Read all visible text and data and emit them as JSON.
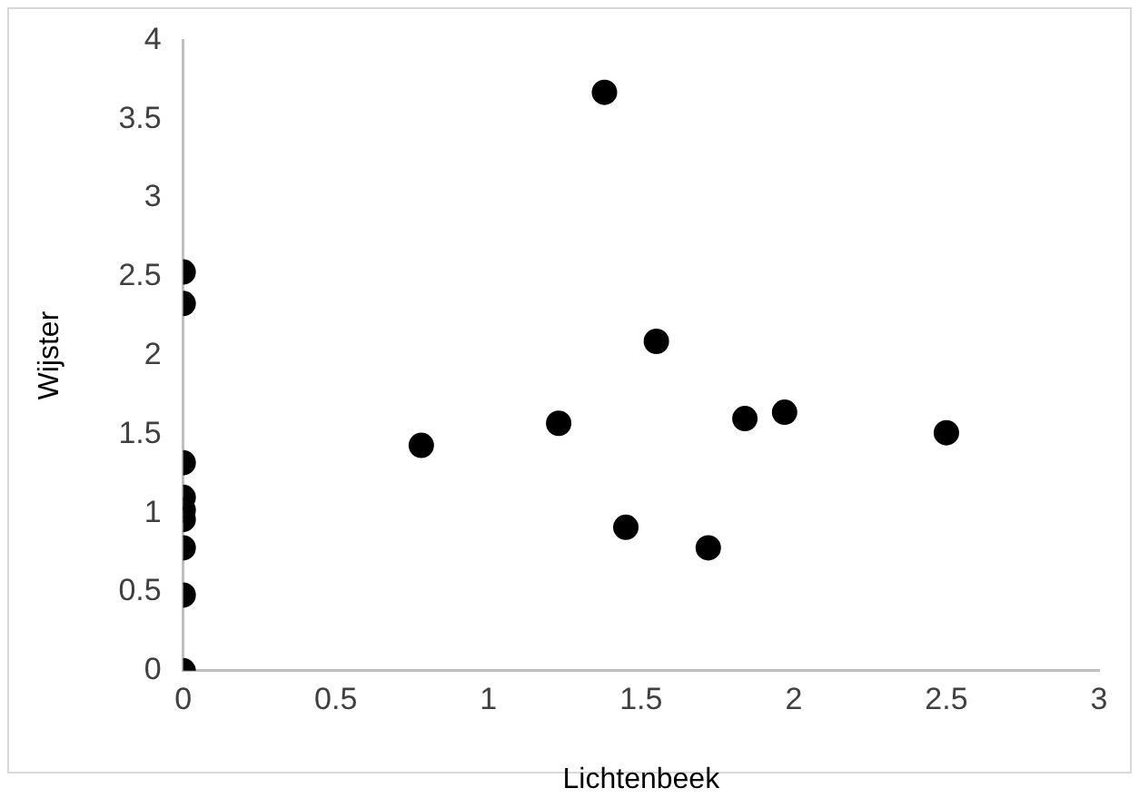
{
  "chart_data": {
    "type": "scatter",
    "xlabel": "Lichtenbeek",
    "ylabel": "Wijster",
    "x": [
      0,
      0,
      0,
      0,
      0,
      0,
      0,
      0,
      0,
      0.78,
      1.23,
      1.38,
      1.45,
      1.55,
      1.72,
      1.84,
      1.97,
      2.5
    ],
    "series": [
      {
        "color": "#000000",
        "values": [
          0,
          0.48,
          0.78,
          0.96,
          1.02,
          1.1,
          1.32,
          2.33,
          2.53,
          1.43,
          1.57,
          3.67,
          0.91,
          2.09,
          0.78,
          1.6,
          1.64,
          1.51
        ]
      }
    ],
    "xlim": [
      0,
      3
    ],
    "xticks": [
      0,
      0.5,
      1,
      1.5,
      2,
      2.5,
      3
    ],
    "ylim": [
      0,
      4
    ],
    "yticks": [
      0,
      0.5,
      1,
      1.5,
      2,
      2.5,
      3,
      3.5,
      4
    ],
    "grid": false,
    "legend": false,
    "marker": "circle"
  }
}
